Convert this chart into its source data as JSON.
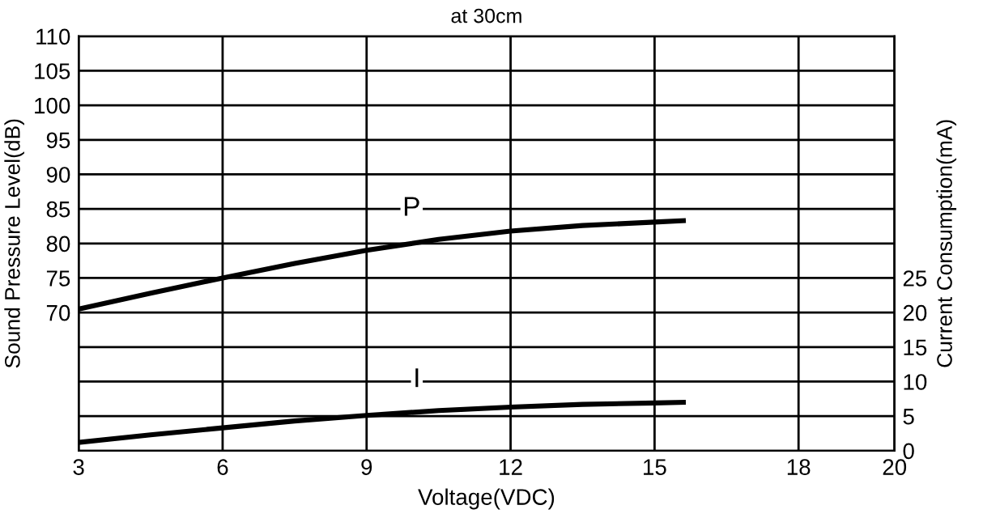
{
  "chart_data": {
    "type": "line",
    "title": "at 30cm",
    "xlabel": "Voltage(VDC)",
    "ylabel": "Sound Pressure Level(dB)",
    "y2label": "Current Consumption(mA)",
    "series": [
      {
        "name": "P",
        "color": "#000000",
        "x": [
          3,
          4.5,
          6,
          7.5,
          9,
          10.5,
          12,
          13.5,
          15,
          15.6
        ],
        "values": [
          70.5,
          72.8,
          75,
          77.1,
          79,
          80.6,
          81.8,
          82.6,
          83.1,
          83.3
        ]
      },
      {
        "name": "I",
        "color": "#000000",
        "axis": "y2",
        "x": [
          3,
          4.5,
          6,
          7.5,
          9,
          10.5,
          12,
          13.5,
          15,
          15.6
        ],
        "values": [
          1.2,
          2.3,
          3.3,
          4.3,
          5.1,
          5.8,
          6.3,
          6.7,
          6.9,
          7.0
        ]
      }
    ],
    "xlim": [
      3,
      20
    ],
    "xticks": [
      3,
      6,
      9,
      12,
      15,
      18,
      20
    ],
    "ylim": [
      50,
      110
    ],
    "yticks": [
      {
        "value": 55,
        "label": null
      },
      {
        "value": 60,
        "label": null
      },
      {
        "value": 65,
        "label": null
      },
      70,
      75,
      80,
      85,
      90,
      95,
      100,
      105,
      110
    ],
    "y2lim": [
      0,
      60
    ],
    "y2ticks": [
      0,
      5,
      10,
      15,
      20,
      25
    ],
    "grid": true,
    "marker": "none",
    "line_style": "solid",
    "legend": false
  }
}
